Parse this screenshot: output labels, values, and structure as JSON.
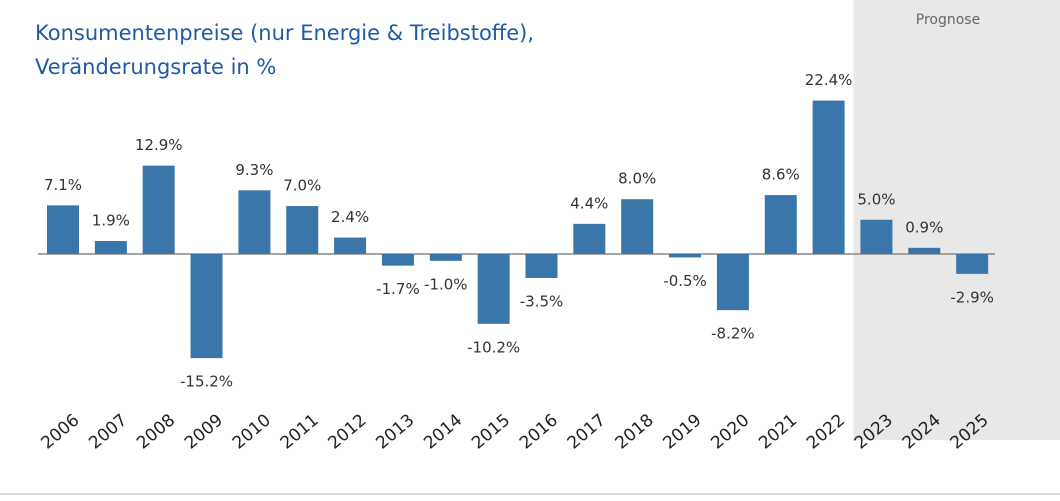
{
  "chart_data": {
    "type": "bar",
    "title": [
      "Konsumentenpreise (nur Energie & Treibstoffe),",
      "Veränderungsrate in %"
    ],
    "categories": [
      "2006",
      "2007",
      "2008",
      "2009",
      "2010",
      "2011",
      "2012",
      "2013",
      "2014",
      "2015",
      "2016",
      "2017",
      "2018",
      "2019",
      "2020",
      "2021",
      "2022",
      "2023",
      "2024",
      "2025"
    ],
    "values": [
      7.1,
      1.9,
      12.9,
      -15.2,
      9.3,
      7.0,
      2.4,
      -1.7,
      -1.0,
      -10.2,
      -3.5,
      4.4,
      8.0,
      -0.5,
      -8.2,
      8.6,
      22.4,
      5.0,
      0.9,
      -2.9
    ],
    "value_labels": [
      "7.1%",
      "1.9%",
      "12.9%",
      "-15.2%",
      "9.3%",
      "7.0%",
      "2.4%",
      "-1.7%",
      "-1.0%",
      "-10.2%",
      "-3.5%",
      "4.4%",
      "8.0%",
      "-0.5%",
      "-8.2%",
      "8.6%",
      "22.4%",
      "5.0%",
      "0.9%",
      "-2.9%"
    ],
    "color": "#3a76aa",
    "annotation": {
      "text": "Prognose",
      "from": "2023"
    }
  }
}
